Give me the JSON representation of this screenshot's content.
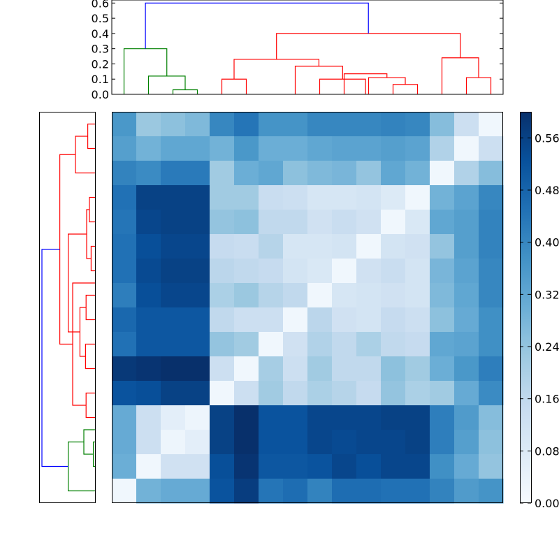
{
  "chart_data": [
    {
      "type": "dendrogram",
      "orientation": "top",
      "ylim": [
        0,
        0.62
      ],
      "yticks": [
        "0.0",
        "0.1",
        "0.2",
        "0.3",
        "0.4",
        "0.5",
        "0.6"
      ],
      "leaf_count": 16,
      "link_colors": {
        "root": "#0000ff",
        "cluster_a": "#008000",
        "cluster_b": "#ff0000"
      },
      "links": [
        {
          "x1": 2.5,
          "x2": 3.5,
          "h": 0.03,
          "c": "cluster_a"
        },
        {
          "x1": 1.5,
          "x2": 3.0,
          "h": 0.12,
          "c": "cluster_a"
        },
        {
          "x1": 0.5,
          "x2": 2.25,
          "h": 0.3,
          "c": "cluster_a"
        },
        {
          "x1": 11.5,
          "x2": 12.5,
          "h": 0.065,
          "c": "cluster_b"
        },
        {
          "x1": 10.5,
          "x2": 12.0,
          "h": 0.11,
          "c": "cluster_b"
        },
        {
          "x1": 9.5,
          "x2": 11.25,
          "h": 0.135,
          "c": "cluster_b"
        },
        {
          "x1": 8.5,
          "x2": 10.375,
          "h": 0.1,
          "c": "cluster_b"
        },
        {
          "x1": 7.5,
          "x2": 9.4375,
          "h": 0.185,
          "c": "cluster_b"
        },
        {
          "x1": 4.5,
          "x2": 5.5,
          "h": 0.1,
          "c": "cluster_b"
        },
        {
          "x1": 5.0,
          "x2": 8.46875,
          "h": 0.23,
          "c": "cluster_b"
        },
        {
          "x1": 14.5,
          "x2": 15.5,
          "h": 0.11,
          "c": "cluster_b"
        },
        {
          "x1": 13.5,
          "x2": 15.0,
          "h": 0.24,
          "c": "cluster_b"
        },
        {
          "x1": 6.734375,
          "x2": 14.25,
          "h": 0.4,
          "c": "cluster_b"
        },
        {
          "x1": 1.375,
          "x2": 10.4921875,
          "h": 0.6,
          "c": "root"
        }
      ]
    },
    {
      "type": "dendrogram",
      "orientation": "left",
      "xlim": [
        0,
        0.62
      ],
      "leaf_count": 16,
      "links": [
        {
          "y1": 0.5,
          "y2": 1.5,
          "h": 0.13,
          "c": "cluster_b"
        },
        {
          "y1": 1.0,
          "y2": 2.5,
          "h": 0.35,
          "c": "cluster_b"
        },
        {
          "y1": 3.5,
          "y2": 4.5,
          "h": 0.1,
          "c": "cluster_b"
        },
        {
          "y1": 5.5,
          "y2": 6.5,
          "h": 0.07,
          "c": "cluster_b"
        },
        {
          "y1": 4.0,
          "y2": 6.0,
          "h": 0.15,
          "c": "cluster_b"
        },
        {
          "y1": 7.5,
          "y2": 8.5,
          "h": 0.16,
          "c": "cluster_b"
        },
        {
          "y1": 9.5,
          "y2": 10.5,
          "h": 0.17,
          "c": "cluster_b"
        },
        {
          "y1": 8.0,
          "y2": 10.0,
          "h": 0.27,
          "c": "cluster_b"
        },
        {
          "y1": 5.0,
          "y2": 9.0,
          "h": 0.48,
          "c": "cluster_b"
        },
        {
          "y1": 11.5,
          "y2": 12.5,
          "h": 0.16,
          "c": "cluster_b"
        },
        {
          "y1": 7.0,
          "y2": 12.0,
          "h": 0.4,
          "c": "cluster_b"
        },
        {
          "y1": 1.75,
          "y2": 9.5,
          "h": 0.63,
          "c": "cluster_b"
        },
        {
          "y1": 13.5,
          "y2": 14.5,
          "h": 0.03,
          "c": "cluster_a"
        },
        {
          "y1": 13.0,
          "y2": 14.0,
          "h": 0.2,
          "c": "cluster_a"
        },
        {
          "y1": 13.5,
          "y2": 15.5,
          "h": 0.48,
          "c": "cluster_a"
        },
        {
          "y1": 5.625,
          "y2": 14.5,
          "h": 0.95,
          "c": "root"
        }
      ]
    },
    {
      "type": "heatmap",
      "rows": 16,
      "cols": 16,
      "vmin": 0,
      "vmax": 0.6,
      "values": [
        [
          0.36,
          0.23,
          0.25,
          0.27,
          0.4,
          0.44,
          0.37,
          0.37,
          0.4,
          0.4,
          0.4,
          0.41,
          0.4,
          0.26,
          0.13,
          0.02
        ],
        [
          0.34,
          0.29,
          0.32,
          0.32,
          0.29,
          0.36,
          0.3,
          0.3,
          0.32,
          0.33,
          0.33,
          0.34,
          0.33,
          0.19,
          0.02,
          0.13
        ],
        [
          0.41,
          0.39,
          0.43,
          0.43,
          0.22,
          0.3,
          0.32,
          0.25,
          0.27,
          0.28,
          0.24,
          0.32,
          0.29,
          0.02,
          0.19,
          0.26
        ],
        [
          0.45,
          0.56,
          0.56,
          0.56,
          0.22,
          0.22,
          0.14,
          0.13,
          0.1,
          0.1,
          0.11,
          0.08,
          0.02,
          0.29,
          0.33,
          0.4
        ],
        [
          0.44,
          0.55,
          0.56,
          0.56,
          0.24,
          0.25,
          0.16,
          0.16,
          0.12,
          0.14,
          0.12,
          0.02,
          0.09,
          0.32,
          0.34,
          0.41
        ],
        [
          0.45,
          0.53,
          0.55,
          0.55,
          0.15,
          0.14,
          0.18,
          0.1,
          0.1,
          0.11,
          0.02,
          0.11,
          0.12,
          0.24,
          0.34,
          0.41
        ],
        [
          0.45,
          0.54,
          0.56,
          0.56,
          0.17,
          0.16,
          0.15,
          0.11,
          0.09,
          0.02,
          0.12,
          0.14,
          0.11,
          0.28,
          0.33,
          0.4
        ],
        [
          0.42,
          0.53,
          0.55,
          0.55,
          0.2,
          0.23,
          0.18,
          0.16,
          0.02,
          0.1,
          0.11,
          0.12,
          0.11,
          0.27,
          0.32,
          0.4
        ],
        [
          0.47,
          0.51,
          0.51,
          0.51,
          0.16,
          0.13,
          0.13,
          0.02,
          0.17,
          0.12,
          0.11,
          0.15,
          0.13,
          0.25,
          0.31,
          0.38
        ],
        [
          0.45,
          0.51,
          0.51,
          0.51,
          0.24,
          0.22,
          0.02,
          0.12,
          0.19,
          0.16,
          0.2,
          0.16,
          0.15,
          0.32,
          0.33,
          0.38
        ],
        [
          0.58,
          0.59,
          0.6,
          0.6,
          0.13,
          0.02,
          0.21,
          0.13,
          0.22,
          0.16,
          0.16,
          0.25,
          0.22,
          0.3,
          0.36,
          0.42
        ],
        [
          0.52,
          0.53,
          0.56,
          0.56,
          0.02,
          0.13,
          0.22,
          0.16,
          0.2,
          0.18,
          0.15,
          0.24,
          0.2,
          0.22,
          0.31,
          0.39
        ],
        [
          0.31,
          0.13,
          0.06,
          0.03,
          0.56,
          0.6,
          0.52,
          0.52,
          0.55,
          0.55,
          0.55,
          0.56,
          0.56,
          0.42,
          0.35,
          0.26
        ],
        [
          0.31,
          0.13,
          0.03,
          0.06,
          0.56,
          0.6,
          0.52,
          0.52,
          0.55,
          0.54,
          0.55,
          0.55,
          0.56,
          0.42,
          0.34,
          0.25
        ],
        [
          0.3,
          0.02,
          0.12,
          0.12,
          0.53,
          0.59,
          0.51,
          0.51,
          0.52,
          0.55,
          0.53,
          0.55,
          0.55,
          0.38,
          0.31,
          0.24
        ],
        [
          0.02,
          0.29,
          0.31,
          0.31,
          0.52,
          0.57,
          0.44,
          0.46,
          0.41,
          0.46,
          0.46,
          0.45,
          0.45,
          0.41,
          0.35,
          0.37
        ]
      ],
      "colorbar": {
        "ticks": [
          "0.00",
          "0.08",
          "0.16",
          "0.24",
          "0.32",
          "0.40",
          "0.48",
          "0.56"
        ],
        "colormap": [
          "#f7fbff",
          "#deebf7",
          "#c6dbef",
          "#9ecae1",
          "#6baed6",
          "#4292c6",
          "#2171b5",
          "#08519c",
          "#08306b"
        ]
      }
    }
  ]
}
